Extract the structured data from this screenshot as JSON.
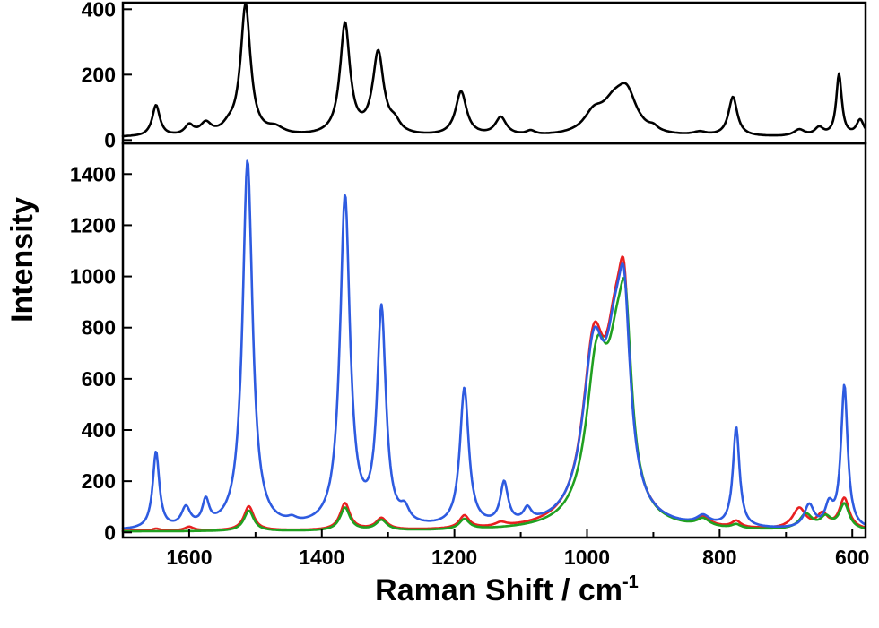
{
  "chart_data": [
    {
      "panel": "top",
      "type": "line",
      "xlabel": "",
      "ylabel": "",
      "xlim": [
        1700,
        580
      ],
      "ylim": [
        -10,
        420
      ],
      "x_reversed": true,
      "y_ticks": [
        0,
        200,
        400
      ],
      "y_tick_labels": [
        "0",
        "200",
        "400"
      ],
      "grid": false,
      "series": [
        {
          "color": "#000000",
          "peaks": [
            [
              1650,
              95,
              7
            ],
            [
              1600,
              30,
              8
            ],
            [
              1575,
              35,
              10
            ],
            [
              1540,
              20,
              12
            ],
            [
              1515,
              400,
              9
            ],
            [
              1470,
              20,
              15
            ],
            [
              1365,
              340,
              9
            ],
            [
              1315,
              250,
              10
            ],
            [
              1290,
              30,
              10
            ],
            [
              1190,
              135,
              10
            ],
            [
              1130,
              55,
              10
            ],
            [
              1085,
              12,
              8
            ],
            [
              990,
              55,
              18
            ],
            [
              960,
              80,
              22
            ],
            [
              940,
              110,
              18
            ],
            [
              900,
              12,
              8
            ],
            [
              830,
              10,
              12
            ],
            [
              780,
              120,
              8
            ],
            [
              680,
              20,
              10
            ],
            [
              650,
              25,
              8
            ],
            [
              620,
              190,
              5
            ],
            [
              588,
              50,
              7
            ]
          ],
          "baseline": 8
        }
      ]
    },
    {
      "panel": "bottom",
      "type": "line",
      "xlabel": "Raman Shift / cm",
      "xlabel_sup": "-1",
      "ylabel": "Intensity",
      "xlim": [
        1700,
        580
      ],
      "ylim": [
        -20,
        1520
      ],
      "x_reversed": true,
      "x_ticks": [
        1600,
        1400,
        1200,
        1000,
        800,
        600
      ],
      "x_tick_labels": [
        "1600",
        "1400",
        "1200",
        "1000",
        "800",
        "600"
      ],
      "y_ticks": [
        0,
        200,
        400,
        600,
        800,
        1000,
        1200,
        1400
      ],
      "y_tick_labels": [
        "0",
        "200",
        "400",
        "600",
        "800",
        "1000",
        "1200",
        "1400"
      ],
      "grid": false,
      "series": [
        {
          "color": "#e82020",
          "peaks": [
            [
              1650,
              8,
              7
            ],
            [
              1600,
              15,
              8
            ],
            [
              1510,
              95,
              9
            ],
            [
              1365,
              105,
              9
            ],
            [
              1310,
              45,
              10
            ],
            [
              1185,
              50,
              9
            ],
            [
              1130,
              15,
              10
            ],
            [
              990,
              650,
              20
            ],
            [
              958,
              520,
              18
            ],
            [
              944,
              620,
              11
            ],
            [
              825,
              35,
              12
            ],
            [
              775,
              25,
              8
            ],
            [
              680,
              80,
              12
            ],
            [
              645,
              55,
              10
            ],
            [
              612,
              120,
              9
            ]
          ],
          "baseline": 5
        },
        {
          "color": "#20a020",
          "peaks": [
            [
              1510,
              80,
              9
            ],
            [
              1365,
              90,
              9
            ],
            [
              1310,
              40,
              10
            ],
            [
              1185,
              40,
              9
            ],
            [
              985,
              600,
              20
            ],
            [
              955,
              470,
              18
            ],
            [
              942,
              550,
              11
            ],
            [
              825,
              30,
              12
            ],
            [
              775,
              15,
              8
            ],
            [
              670,
              60,
              12
            ],
            [
              640,
              45,
              10
            ],
            [
              612,
              100,
              9
            ]
          ],
          "baseline": 3
        },
        {
          "color": "#2e5be0",
          "peaks": [
            [
              1650,
              300,
              6
            ],
            [
              1605,
              75,
              8
            ],
            [
              1575,
              95,
              6
            ],
            [
              1512,
              1440,
              9
            ],
            [
              1445,
              15,
              8
            ],
            [
              1365,
              1290,
              9
            ],
            [
              1310,
              840,
              8
            ],
            [
              1275,
              50,
              8
            ],
            [
              1185,
              540,
              8
            ],
            [
              1125,
              160,
              7
            ],
            [
              1090,
              50,
              7
            ],
            [
              990,
              630,
              20
            ],
            [
              958,
              510,
              18
            ],
            [
              944,
              600,
              11
            ],
            [
              825,
              35,
              12
            ],
            [
              775,
              390,
              6
            ],
            [
              665,
              90,
              9
            ],
            [
              635,
              80,
              7
            ],
            [
              612,
              560,
              6
            ]
          ],
          "baseline": 5
        }
      ]
    }
  ]
}
